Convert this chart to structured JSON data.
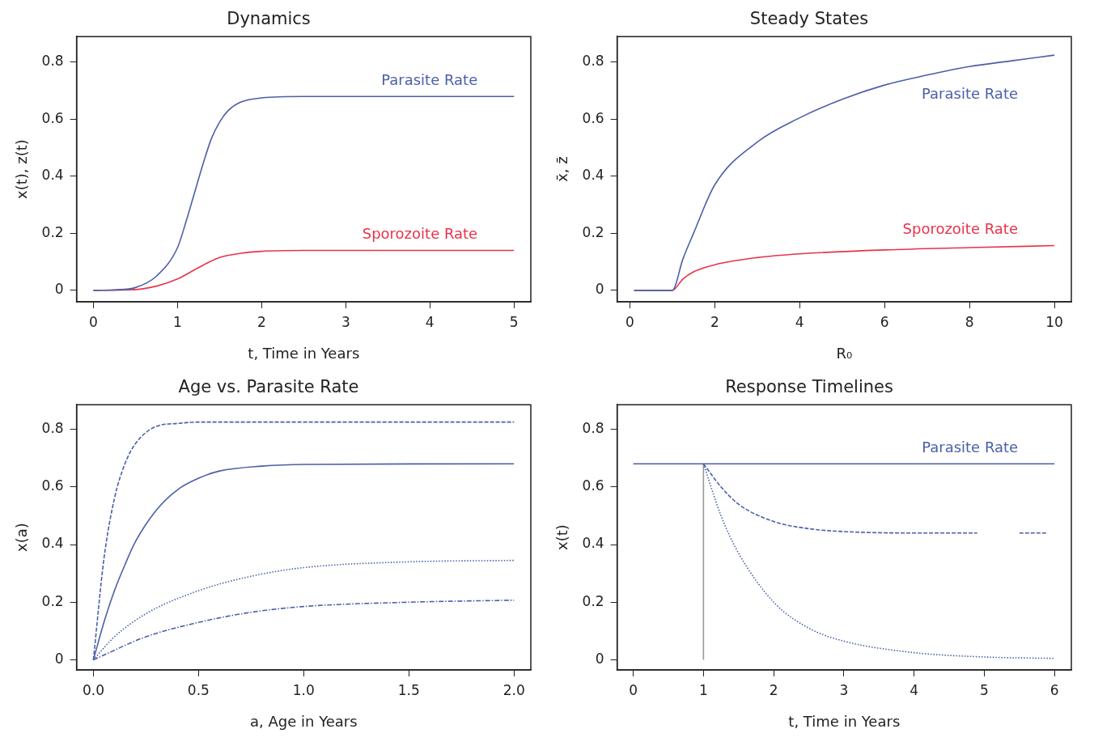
{
  "chart_data": [
    {
      "type": "line",
      "title": "Dynamics",
      "xlabel": "t, Time in Years",
      "ylabel": "x(t), z(t)",
      "xlim": [
        -0.2,
        5.2
      ],
      "xticks": [
        0,
        1,
        2,
        3,
        4,
        5
      ],
      "ylim": [
        -0.04,
        0.89
      ],
      "yticks": [
        0.0,
        0.2,
        0.4,
        0.6,
        0.8
      ],
      "grid": false,
      "legend": false,
      "marker": "none",
      "series": [
        {
          "name": "Parasite Rate",
          "color": "#4a5fa8",
          "x": [
            0,
            0.25,
            0.5,
            0.75,
            1,
            1.1,
            1.2,
            1.3,
            1.4,
            1.5,
            1.6,
            1.75,
            2,
            2.5,
            3,
            5
          ],
          "values": [
            0,
            0.002,
            0.01,
            0.05,
            0.15,
            0.24,
            0.34,
            0.44,
            0.53,
            0.59,
            0.63,
            0.66,
            0.675,
            0.68,
            0.68,
            0.68
          ]
        },
        {
          "name": "Sporozoite Rate",
          "color": "#e8334a",
          "x": [
            0,
            0.5,
            0.75,
            1,
            1.25,
            1.5,
            1.75,
            2,
            2.5,
            5
          ],
          "values": [
            0,
            0.003,
            0.015,
            0.04,
            0.08,
            0.115,
            0.13,
            0.137,
            0.14,
            0.14
          ]
        }
      ]
    },
    {
      "type": "line",
      "title": "Steady States",
      "xlabel": "R₀",
      "ylabel": "x̄, z̄",
      "xlim": [
        -0.3,
        10.4
      ],
      "xticks": [
        0,
        2,
        4,
        6,
        8,
        10
      ],
      "ylim": [
        -0.04,
        0.89
      ],
      "yticks": [
        0.0,
        0.2,
        0.4,
        0.6,
        0.8
      ],
      "grid": false,
      "legend": false,
      "marker": "none",
      "series": [
        {
          "name": "Parasite Rate",
          "color": "#4a5fa8",
          "x": [
            0.1,
            1,
            1.25,
            1.5,
            2,
            3,
            4,
            5,
            6,
            7,
            8,
            9,
            10
          ],
          "values": [
            0,
            0,
            0.11,
            0.2,
            0.37,
            0.52,
            0.605,
            0.67,
            0.72,
            0.755,
            0.785,
            0.805,
            0.825
          ]
        },
        {
          "name": "Sporozoite Rate",
          "color": "#e8334a",
          "x": [
            0.1,
            1,
            1.25,
            1.5,
            2,
            3,
            4,
            6,
            8,
            10
          ],
          "values": [
            0,
            0,
            0.04,
            0.065,
            0.09,
            0.115,
            0.128,
            0.142,
            0.15,
            0.157
          ]
        }
      ]
    },
    {
      "type": "line",
      "title": "Age vs. Parasite Rate",
      "xlabel": "a, Age in Years",
      "ylabel": "x(a)",
      "xlim": [
        -0.08,
        2.08
      ],
      "xticks": [
        {
          "value": 0,
          "label": "0.0"
        },
        0.5,
        {
          "value": 1,
          "label": "1.0"
        },
        1.5,
        {
          "value": 2,
          "label": "2.0"
        }
      ],
      "ylim": [
        -0.035,
        0.885
      ],
      "yticks": [
        0.0,
        0.2,
        0.4,
        0.6,
        0.8
      ],
      "grid": false,
      "legend": false,
      "marker": "none",
      "series": [
        {
          "color": "#4a5fa8",
          "line_style": "dashed",
          "x": [
            0,
            0.05,
            0.1,
            0.15,
            0.2,
            0.3,
            0.4,
            0.5,
            2
          ],
          "values": [
            0,
            0.35,
            0.56,
            0.68,
            0.75,
            0.81,
            0.82,
            0.825,
            0.825
          ]
        },
        {
          "color": "#4a5fa8",
          "line_style": "solid",
          "x": [
            0,
            0.05,
            0.1,
            0.15,
            0.2,
            0.3,
            0.4,
            0.5,
            0.6,
            0.8,
            1,
            2
          ],
          "values": [
            0,
            0.13,
            0.24,
            0.33,
            0.41,
            0.52,
            0.59,
            0.63,
            0.655,
            0.672,
            0.678,
            0.68
          ]
        },
        {
          "color": "#4a5fa8",
          "line_style": "dotted",
          "x": [
            0,
            0.1,
            0.25,
            0.5,
            0.75,
            1,
            1.5,
            2
          ],
          "values": [
            0,
            0.08,
            0.16,
            0.24,
            0.29,
            0.32,
            0.34,
            0.345
          ]
        },
        {
          "color": "#4a5fa8",
          "line_style": "dashdot",
          "x": [
            0,
            0.25,
            0.5,
            0.75,
            1,
            1.5,
            2
          ],
          "values": [
            0,
            0.08,
            0.13,
            0.165,
            0.185,
            0.2,
            0.207
          ]
        }
      ]
    },
    {
      "type": "line",
      "title": "Response Timelines",
      "xlabel": "t, Time in Years",
      "ylabel": "x(t)",
      "xlim": [
        -0.23,
        6.24
      ],
      "xticks": [
        0,
        1,
        2,
        3,
        4,
        5,
        6
      ],
      "ylim": [
        -0.035,
        0.885
      ],
      "yticks": [
        0.0,
        0.2,
        0.4,
        0.6,
        0.8
      ],
      "grid": false,
      "legend": false,
      "marker": "none",
      "series": [
        {
          "name": "Parasite Rate",
          "color": "#4a5fa8",
          "line_style": "solid",
          "x": [
            0,
            6
          ],
          "values": [
            0.68,
            0.68
          ]
        },
        {
          "color": "#4a5fa8",
          "line_style": "dashed",
          "x": [
            1,
            1.25,
            1.5,
            2,
            2.5,
            3,
            4,
            4.9,
            5.2,
            5.5,
            5.9
          ],
          "values": [
            0.68,
            0.6,
            0.54,
            0.48,
            0.455,
            0.445,
            0.44,
            0.44,
            null,
            0.44,
            0.44
          ]
        },
        {
          "color": "#4a5fa8",
          "line_style": "dotted",
          "x": [
            1,
            1.25,
            1.5,
            2,
            2.5,
            3,
            4,
            5,
            6
          ],
          "values": [
            0.68,
            0.5,
            0.37,
            0.2,
            0.11,
            0.065,
            0.025,
            0.01,
            0.005
          ]
        },
        {
          "color": "#999999",
          "line_style": "solid",
          "x": [
            1,
            1
          ],
          "values": [
            0,
            0.68
          ]
        }
      ]
    }
  ]
}
